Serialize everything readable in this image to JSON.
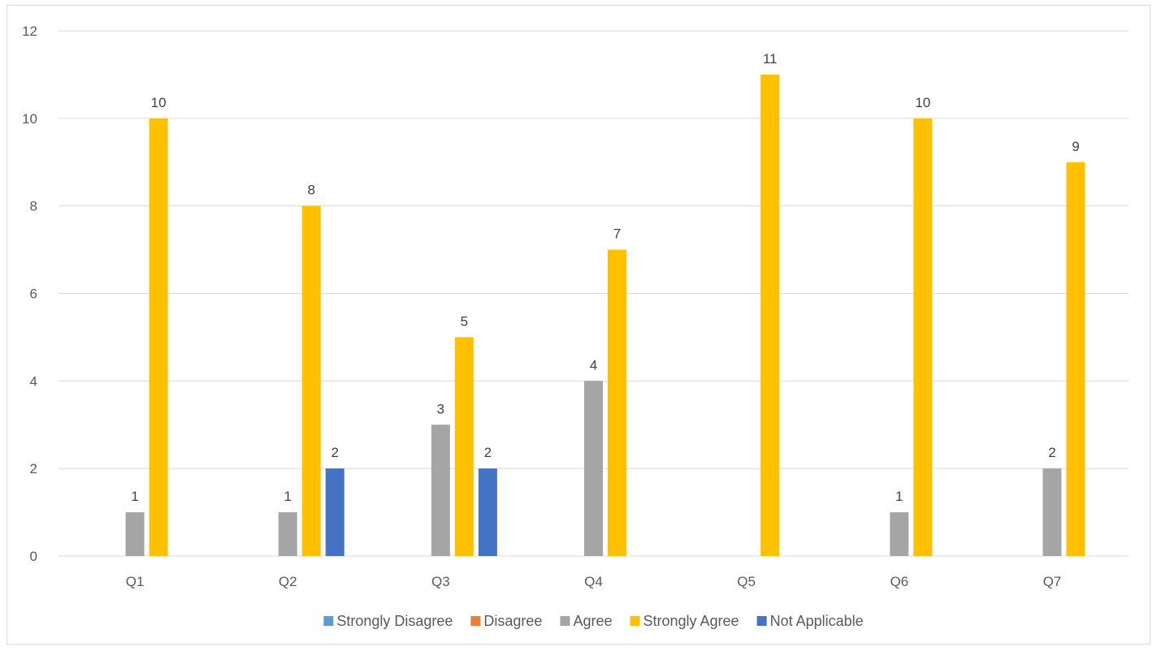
{
  "chart_data": {
    "type": "bar",
    "title": "",
    "xlabel": "",
    "ylabel": "",
    "categories": [
      "Q1",
      "Q2",
      "Q3",
      "Q4",
      "Q5",
      "Q6",
      "Q7"
    ],
    "series": [
      {
        "name": "Strongly Disagree",
        "color": "#5b9bd5",
        "values": [
          0,
          0,
          0,
          0,
          0,
          0,
          0
        ]
      },
      {
        "name": "Disagree",
        "color": "#ed7d31",
        "values": [
          0,
          0,
          0,
          0,
          0,
          0,
          0
        ]
      },
      {
        "name": "Agree",
        "color": "#a5a5a5",
        "values": [
          1,
          1,
          3,
          4,
          0,
          1,
          2
        ]
      },
      {
        "name": "Strongly Agree",
        "color": "#ffc000",
        "values": [
          10,
          8,
          5,
          7,
          11,
          10,
          9
        ]
      },
      {
        "name": "Not Applicable",
        "color": "#4472c4",
        "values": [
          0,
          2,
          2,
          0,
          0,
          0,
          0
        ]
      }
    ],
    "ylim": [
      0,
      12
    ],
    "yticks": [
      0,
      2,
      4,
      6,
      8,
      10,
      12
    ],
    "grid": true,
    "legend_position": "bottom",
    "data_labels": true
  }
}
